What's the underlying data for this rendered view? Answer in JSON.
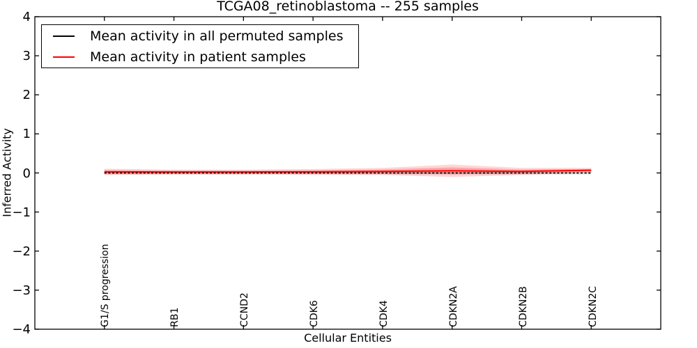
{
  "chart_data": {
    "type": "line",
    "title": "TCGA08_retinoblastoma -- 255 samples",
    "xlabel": "Cellular Entities",
    "ylabel": "Inferred Activity",
    "ylim": [
      -4,
      4
    ],
    "ytick_labels": [
      "4",
      "3",
      "2",
      "1",
      "0",
      "−1",
      "−2",
      "−3",
      "−4"
    ],
    "categories": [
      "G1/S progression",
      "RB1",
      "CCND2",
      "CDK6",
      "CDK4",
      "CDKN2A",
      "CDKN2B",
      "CDKN2C"
    ],
    "series": [
      {
        "name": "Mean activity in all permuted samples",
        "color": "#000000",
        "line_style": "dashed",
        "values": [
          0,
          0,
          0,
          0,
          0,
          0,
          0,
          0
        ],
        "band_halfwidth": [
          0.05,
          0.05,
          0.05,
          0.05,
          0.05,
          0.05,
          0.05,
          0.05
        ],
        "band_color": "#999999"
      },
      {
        "name": "Mean activity in patient samples",
        "color": "#ff0000",
        "line_style": "solid",
        "values": [
          0.03,
          0.025,
          0.025,
          0.03,
          0.04,
          0.055,
          0.04,
          0.07
        ],
        "band_halfwidth": [
          0.08,
          0.06,
          0.06,
          0.07,
          0.09,
          0.16,
          0.09,
          0.06
        ],
        "band_color": "#ff0000"
      }
    ],
    "legend_position": "upper left",
    "grid": false,
    "background_color": "#ffffff",
    "frame_color": "#000000"
  }
}
